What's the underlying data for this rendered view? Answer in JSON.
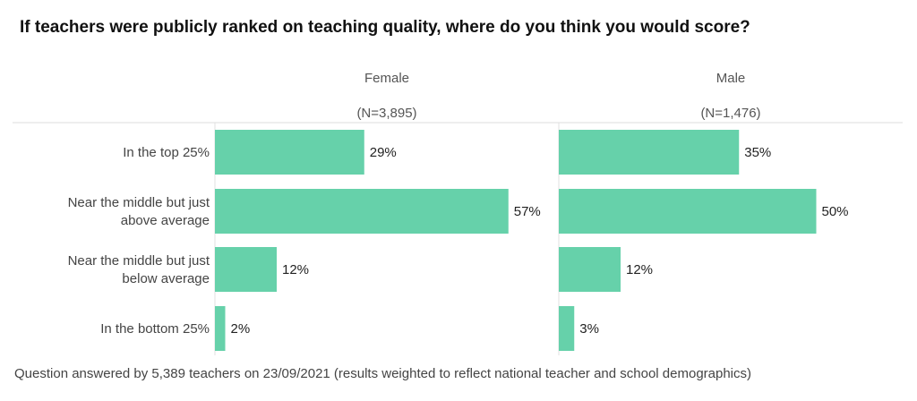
{
  "chart_data": {
    "type": "bar",
    "title": "If teachers were publicly ranked on teaching quality, where do you think you would score?",
    "categories": [
      "In the top 25%",
      "Near the middle but just above average",
      "Near the middle but just below average",
      "In the bottom 25%"
    ],
    "category_lines": [
      [
        "In the top 25%"
      ],
      [
        "Near the middle but just",
        "above average"
      ],
      [
        "Near the middle but just",
        "below average"
      ],
      [
        "In the bottom 25%"
      ]
    ],
    "panels": [
      {
        "name": "Female",
        "n_label": "(N=3,895)",
        "values": [
          29,
          57,
          12,
          2
        ],
        "labels": [
          "29%",
          "57%",
          "12%",
          "2%"
        ]
      },
      {
        "name": "Male",
        "n_label": "(N=1,476)",
        "values": [
          35,
          50,
          12,
          3
        ],
        "labels": [
          "35%",
          "50%",
          "12%",
          "3%"
        ]
      }
    ],
    "xlim": [
      0,
      100
    ],
    "unit": "%",
    "bar_color": "#66d1aa",
    "grid": false,
    "footnote": "Question answered by 5,389 teachers on 23/09/2021 (results weighted to reflect national teacher and school demographics)"
  }
}
